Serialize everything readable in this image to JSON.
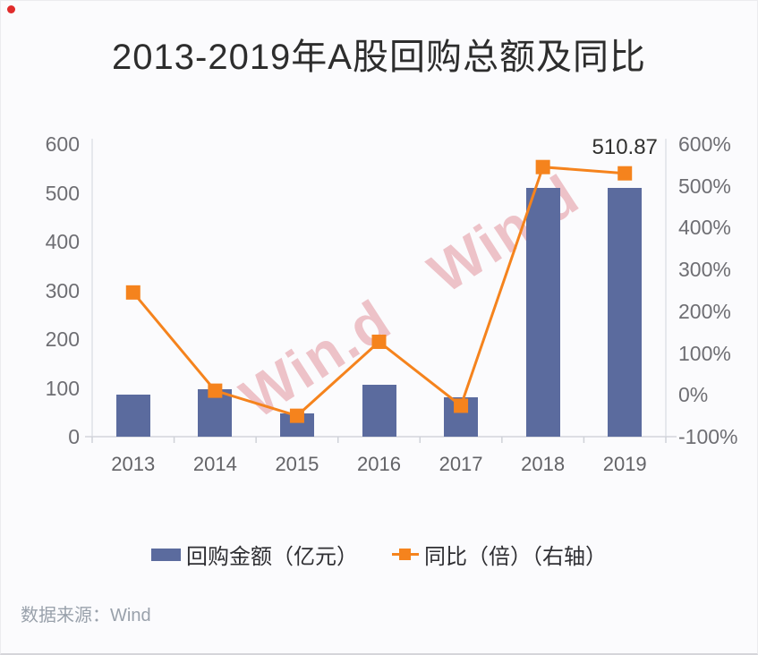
{
  "title": "2013-2019年A股回购总额及同比",
  "source_note": "数据来源：Wind",
  "watermarks": [
    {
      "text": "Win.d"
    },
    {
      "text": "Win.d"
    }
  ],
  "legend": {
    "bar_label": "回购金额（亿元）",
    "line_label": "同比（倍）（右轴）"
  },
  "chart_data": {
    "type": "combo-bar-line",
    "title": "2013-2019年A股回购总额及同比",
    "categories": [
      "2013",
      "2014",
      "2015",
      "2016",
      "2017",
      "2018",
      "2019"
    ],
    "series": [
      {
        "name": "回购金额（亿元）",
        "type": "bar",
        "axis": "left",
        "values": [
          86,
          97,
          48,
          106,
          80,
          510,
          510.87
        ]
      },
      {
        "name": "同比（倍）（右轴）",
        "type": "line",
        "axis": "right",
        "values_percent": [
          245,
          10,
          -50,
          127,
          -26,
          545,
          530
        ]
      }
    ],
    "left_axis": {
      "range": [
        0,
        600
      ],
      "ticks": [
        "600",
        "500",
        "400",
        "300",
        "200",
        "100",
        "0"
      ]
    },
    "right_axis": {
      "range": [
        -100,
        600
      ],
      "ticks": [
        "600%",
        "500%",
        "400%",
        "300%",
        "200%",
        "100%",
        "0%",
        "-100%"
      ]
    },
    "annotation": {
      "text": "510.87",
      "category": "2019"
    },
    "grid": false,
    "legend_position": "bottom"
  },
  "colors": {
    "bar": "#5b6b9e",
    "line": "#f5831d",
    "title": "#2d2d2d",
    "axis_label": "#6e6e73",
    "x_label": "#636367",
    "axis_line": "#dfe1e8",
    "baseline": "#d3d5dc",
    "tick_mark": "#cfd1d8",
    "legend_text": "#2f2f33",
    "annotation_text": "#30302f",
    "watermark": "rgba(200,45,65,0.28)",
    "source_text": "#99a1ab",
    "red_dot": "#e02b2b",
    "background": "#fbfbfd"
  }
}
